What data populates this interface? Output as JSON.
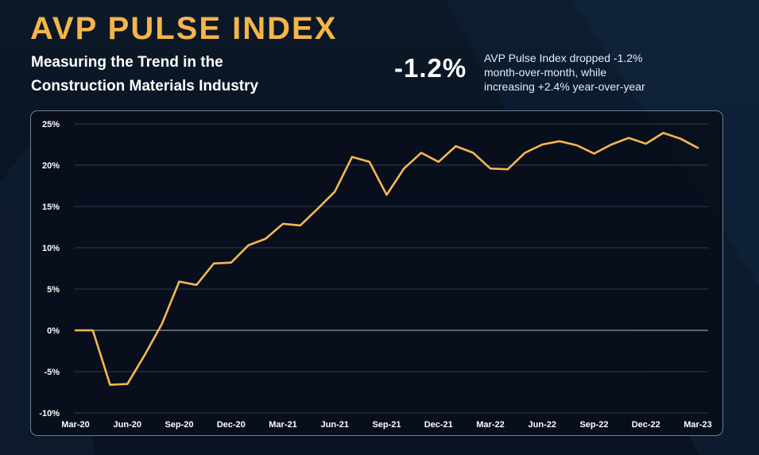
{
  "header": {
    "title": "AVP PULSE INDEX",
    "subtitle_line1": "Measuring the Trend in the",
    "subtitle_line2": "Construction Materials Industry",
    "stat_value": "-1.2%",
    "stat_desc_line1": "AVP Pulse Index dropped -1.2%",
    "stat_desc_line2": "month-over-month, while",
    "stat_desc_line3": "increasing +2.4% year-over-year"
  },
  "colors": {
    "title": "#f4b648",
    "line": "#f7b84f",
    "grid": "#2c3e52",
    "zero_line": "#8a99a8",
    "panel_border": "#6a7e92",
    "background": "#0a1320"
  },
  "chart_data": {
    "type": "line",
    "title": "",
    "xlabel": "",
    "ylabel": "",
    "ylim": [
      -10,
      25
    ],
    "y_ticks": [
      25,
      20,
      15,
      10,
      5,
      0,
      -5,
      -10
    ],
    "y_tick_labels": [
      "25%",
      "20%",
      "15%",
      "10%",
      "5%",
      "0%",
      "-5%",
      "-10%"
    ],
    "x_tick_labels": [
      "Mar-20",
      "Jun-20",
      "Sep-20",
      "Dec-20",
      "Mar-21",
      "Jun-21",
      "Sep-21",
      "Dec-21",
      "Mar-22",
      "Jun-22",
      "Sep-22",
      "Dec-22",
      "Mar-23"
    ],
    "grid": true,
    "legend": "none",
    "series": [
      {
        "x": [
          "Mar-20",
          "Apr-20",
          "May-20",
          "Jun-20",
          "Jul-20",
          "Aug-20",
          "Sep-20",
          "Oct-20",
          "Nov-20",
          "Dec-20",
          "Jan-21",
          "Feb-21",
          "Mar-21",
          "Apr-21",
          "May-21",
          "Jun-21",
          "Jul-21",
          "Aug-21",
          "Sep-21",
          "Oct-21",
          "Nov-21",
          "Dec-21",
          "Jan-22",
          "Feb-22",
          "Mar-22",
          "Apr-22",
          "May-22",
          "Jun-22",
          "Jul-22",
          "Aug-22",
          "Sep-22",
          "Oct-22",
          "Nov-22",
          "Dec-22",
          "Jan-23",
          "Feb-23",
          "Mar-23"
        ],
        "values": [
          0.0,
          0.0,
          -6.6,
          -6.5,
          -3.0,
          0.8,
          5.9,
          5.5,
          8.1,
          8.2,
          10.3,
          11.1,
          12.9,
          12.7,
          14.7,
          16.8,
          21.0,
          20.4,
          16.4,
          19.6,
          21.5,
          20.4,
          22.3,
          21.5,
          19.6,
          19.5,
          21.5,
          22.5,
          22.9,
          22.4,
          21.4,
          22.5,
          23.3,
          22.6,
          23.9,
          23.2,
          22.1
        ]
      }
    ]
  }
}
